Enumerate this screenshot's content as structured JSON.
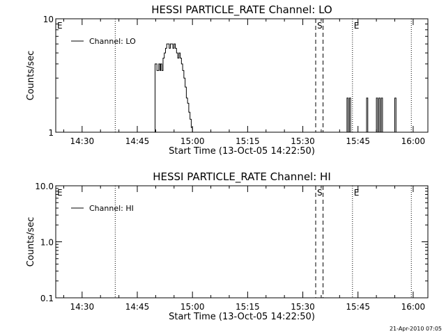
{
  "chart_data": [
    {
      "type": "line",
      "title": "HESSI PARTICLE_RATE Channel: LO",
      "xlabel": "Start Time (13-Oct-05 14:22:50)",
      "ylabel": "Counts/sec",
      "yscale": "log",
      "xlim": [
        "14:22:50",
        "16:04:00"
      ],
      "ylim": [
        1,
        10
      ],
      "x_ticks": [
        "14:30",
        "14:45",
        "15:00",
        "15:15",
        "15:30",
        "15:45",
        "16:00"
      ],
      "y_ticks": [
        "1",
        "10"
      ],
      "legend": {
        "position": "top-left",
        "entries": [
          "Channel: LO"
        ]
      },
      "markers": [
        {
          "label": "E",
          "time": "14:22:50",
          "style": "dotted"
        },
        {
          "label": "",
          "time": "14:39:00",
          "style": "dotted"
        },
        {
          "label": "S",
          "time": "15:33:30",
          "style": "dashed"
        },
        {
          "label": "",
          "time": "15:35:30",
          "style": "dashed"
        },
        {
          "label": "E",
          "time": "15:43:30",
          "style": "dotted"
        },
        {
          "label": "",
          "time": "15:59:30",
          "style": "dotted"
        }
      ],
      "series": [
        {
          "name": "Channel: LO",
          "x": [
            "14:49:40",
            "14:49:50",
            "14:50:10",
            "14:50:20",
            "14:50:40",
            "14:50:50",
            "14:51:10",
            "14:51:20",
            "14:51:40",
            "14:52:00",
            "14:52:20",
            "14:52:40",
            "14:53:00",
            "14:53:20",
            "14:53:40",
            "14:54:00",
            "14:54:20",
            "14:54:40",
            "14:55:00",
            "14:55:20",
            "14:55:40",
            "14:56:00",
            "14:56:20",
            "14:56:40",
            "14:57:00",
            "14:57:20",
            "14:57:40",
            "14:58:00",
            "14:58:20",
            "14:58:40",
            "14:59:00",
            "14:59:20",
            "14:59:40",
            "15:00:00",
            "15:00:10",
            "15:00:20",
            "15:41:40",
            "15:42:00",
            "15:42:20",
            "15:42:40",
            "15:43:00",
            "15:47:00",
            "15:47:20",
            "15:47:40",
            "15:49:40",
            "15:50:00",
            "15:50:20",
            "15:50:40",
            "15:51:00",
            "15:51:20",
            "15:51:40",
            "15:54:40",
            "15:55:00",
            "15:55:20"
          ],
          "y": [
            1,
            4,
            4,
            3.5,
            3.5,
            4,
            3.5,
            4,
            3.5,
            4.5,
            5,
            5.5,
            6,
            6,
            5.5,
            6,
            6,
            5.5,
            6,
            5.5,
            5,
            4.5,
            5,
            4.5,
            4,
            3.5,
            3,
            2.5,
            2,
            1.8,
            1.5,
            1.3,
            1.1,
            1,
            1,
            1,
            1,
            2,
            1,
            2,
            1,
            1,
            2,
            1,
            1,
            2,
            1,
            2,
            1,
            2,
            1,
            1,
            2,
            1
          ]
        }
      ]
    },
    {
      "type": "line",
      "title": "HESSI PARTICLE_RATE Channel: HI",
      "xlabel": "Start Time (13-Oct-05 14:22:50)",
      "ylabel": "Counts/sec",
      "yscale": "log",
      "xlim": [
        "14:22:50",
        "16:04:00"
      ],
      "ylim": [
        0.1,
        10
      ],
      "x_ticks": [
        "14:30",
        "14:45",
        "15:00",
        "15:15",
        "15:30",
        "15:45",
        "16:00"
      ],
      "y_ticks": [
        "0.1",
        "1.0",
        "10.0"
      ],
      "legend": {
        "position": "top-left",
        "entries": [
          "Channel: HI"
        ]
      },
      "markers": [
        {
          "label": "E",
          "time": "14:22:50",
          "style": "dotted"
        },
        {
          "label": "",
          "time": "14:39:00",
          "style": "dotted"
        },
        {
          "label": "S",
          "time": "15:33:30",
          "style": "dashed"
        },
        {
          "label": "",
          "time": "15:35:30",
          "style": "dashed"
        },
        {
          "label": "E",
          "time": "15:43:30",
          "style": "dotted"
        },
        {
          "label": "",
          "time": "15:59:30",
          "style": "dotted"
        }
      ],
      "series": [
        {
          "name": "Channel: HI",
          "x": [],
          "y": []
        }
      ]
    }
  ],
  "footer": "21-Apr-2010 07:05"
}
